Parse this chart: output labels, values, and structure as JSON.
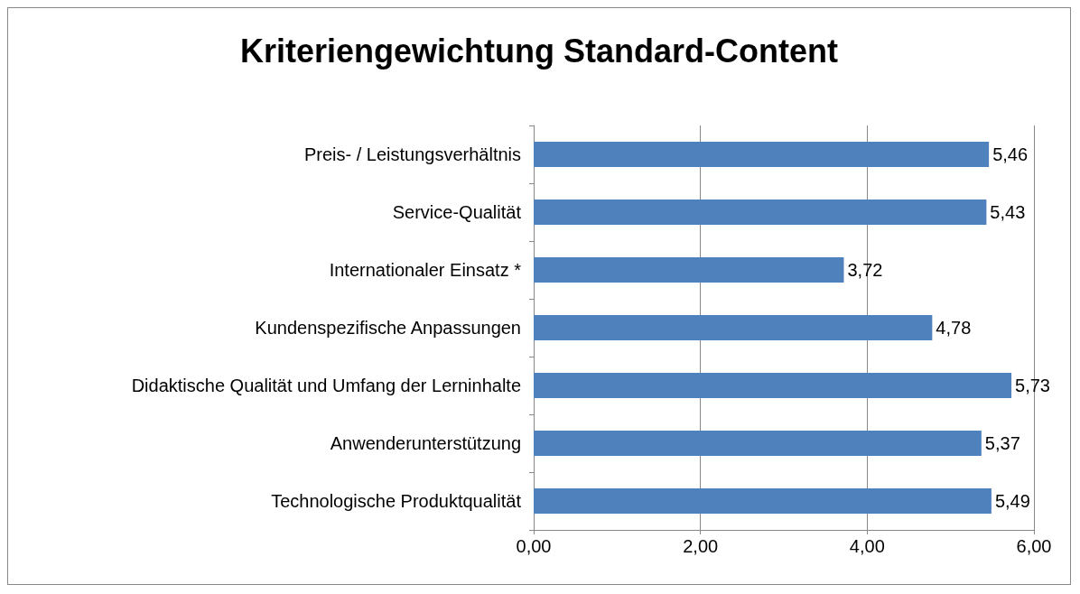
{
  "chart_data": {
    "type": "bar",
    "orientation": "horizontal",
    "title": "Kriteriengewichtung Standard-Content",
    "categories": [
      "Preis- / Leistungsverhältnis",
      "Service-Qualität",
      "Internationaler Einsatz *",
      "Kundenspezifische Anpassungen",
      "Didaktische Qualität und Umfang der Lerninhalte",
      "Anwenderunterstützung",
      "Technologische Produktqualität"
    ],
    "values": [
      5.46,
      5.43,
      3.72,
      4.78,
      5.73,
      5.37,
      5.49
    ],
    "value_labels": [
      "5,46",
      "5,43",
      "3,72",
      "4,78",
      "5,73",
      "5,37",
      "5,49"
    ],
    "color": "#4f81bd",
    "xlim": [
      0,
      6
    ],
    "xticks": [
      {
        "value": 0,
        "label": "0,00"
      },
      {
        "value": 2,
        "label": "2,00"
      },
      {
        "value": 4,
        "label": "4,00"
      },
      {
        "value": 6,
        "label": "6,00"
      }
    ],
    "grid": "x"
  }
}
